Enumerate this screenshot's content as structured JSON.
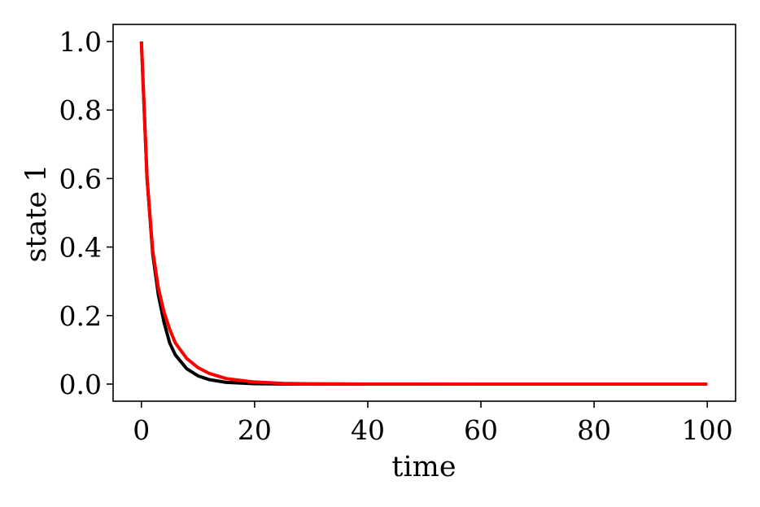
{
  "chart_data": {
    "type": "line",
    "title": "",
    "xlabel": "time",
    "ylabel": "state 1",
    "xlim": [
      -5,
      105
    ],
    "ylim": [
      -0.05,
      1.05
    ],
    "xticks": [
      0,
      20,
      40,
      60,
      80,
      100
    ],
    "yticks": [
      0,
      0.2,
      0.4,
      0.6,
      0.8,
      1.0
    ],
    "xtick_labels": [
      "0",
      "20",
      "40",
      "60",
      "80",
      "100"
    ],
    "ytick_labels": [
      "0.0",
      "0.2",
      "0.4",
      "0.6",
      "0.8",
      "1.0"
    ],
    "grid": false,
    "legend": "none",
    "series": [
      {
        "color": "#000000",
        "x": [
          0,
          1,
          2,
          3,
          4,
          5,
          6,
          8,
          10,
          12,
          15,
          20,
          25,
          30,
          40,
          60,
          80,
          100
        ],
        "y": [
          1.0,
          0.6,
          0.38,
          0.26,
          0.18,
          0.12,
          0.085,
          0.045,
          0.024,
          0.013,
          0.005,
          0.0012,
          0.0003,
          0.0001,
          0,
          0,
          0,
          0
        ]
      },
      {
        "color": "#ff0000",
        "x": [
          0,
          1,
          2,
          3,
          4,
          5,
          6,
          8,
          10,
          12,
          15,
          20,
          25,
          30,
          40,
          60,
          80,
          100
        ],
        "y": [
          1.0,
          0.6,
          0.39,
          0.28,
          0.21,
          0.16,
          0.12,
          0.075,
          0.048,
          0.031,
          0.016,
          0.006,
          0.002,
          0.0008,
          0.0001,
          0,
          0,
          0
        ]
      }
    ]
  }
}
